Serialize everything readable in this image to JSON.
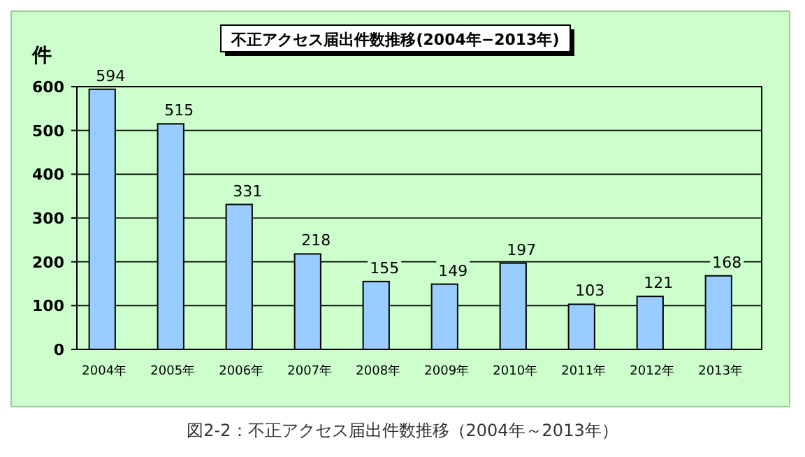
{
  "chart_data": {
    "type": "bar",
    "title": "不正アクセス届出件数推移(2004年−2013年)",
    "ylabel": "件",
    "categories": [
      "2004年",
      "2005年",
      "2006年",
      "2007年",
      "2008年",
      "2009年",
      "2010年",
      "2011年",
      "2012年",
      "2013年"
    ],
    "values": [
      594,
      515,
      331,
      218,
      155,
      149,
      197,
      103,
      121,
      168
    ],
    "color": "#99ccff",
    "ylim": [
      0,
      600
    ],
    "yticks": [
      0,
      100,
      200,
      300,
      400,
      500,
      600
    ],
    "grid": "y",
    "data_labels": true,
    "annotations": [
      "図2-2：不正アクセス届出件数推移（2004年～2013年）"
    ]
  }
}
